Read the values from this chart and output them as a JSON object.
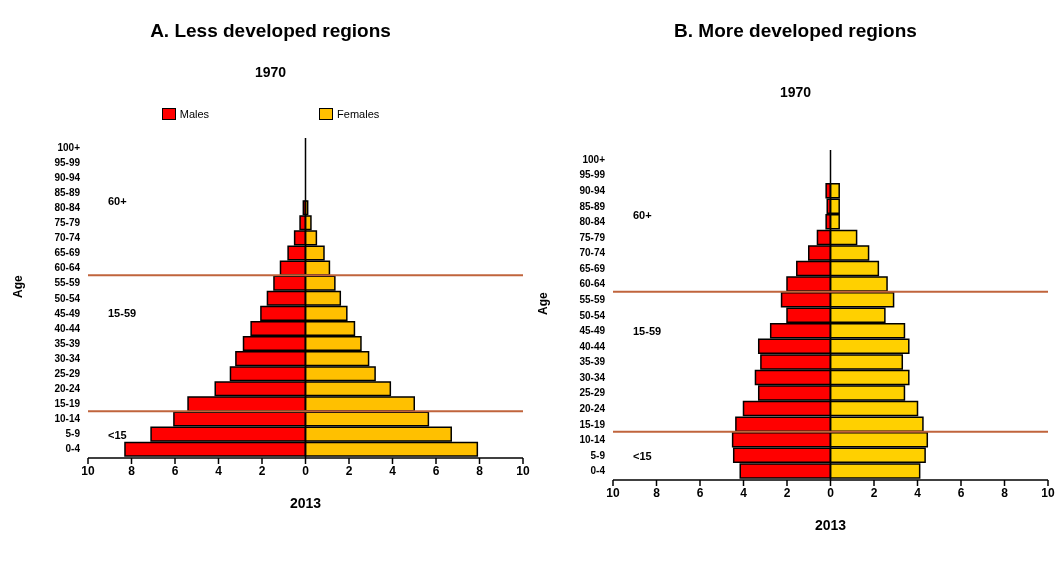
{
  "chart_data": [
    {
      "type": "bar",
      "orientation": "horizontal",
      "stacked": true,
      "title": "A. Less developed regions",
      "subtitle": "1970",
      "xlabel": "2013",
      "ylabel": "Age",
      "categories": [
        "100+",
        "95-99",
        "90-94",
        "85-89",
        "80-84",
        "75-79",
        "70-74",
        "65-69",
        "60-64",
        "55-59",
        "50-54",
        "45-49",
        "40-44",
        "35-39",
        "30-34",
        "25-29",
        "20-24",
        "15-19",
        "10-14",
        "5-9",
        "0-4"
      ],
      "series": [
        {
          "name": "Males",
          "color": "#ff0000",
          "values": [
            0,
            0,
            null,
            null,
            -0.1,
            -0.25,
            -0.5,
            -0.8,
            -1.15,
            -1.45,
            -1.75,
            -2.05,
            -2.5,
            -2.85,
            -3.2,
            -3.45,
            -4.15,
            -5.4,
            -6.05,
            -7.1,
            -8.3
          ]
        },
        {
          "name": "Females",
          "color": "#ffc000",
          "values": [
            0,
            0,
            null,
            null,
            0.1,
            0.25,
            0.5,
            0.85,
            1.1,
            1.35,
            1.6,
            1.9,
            2.25,
            2.55,
            2.9,
            3.2,
            3.9,
            5.0,
            5.65,
            6.7,
            7.9
          ]
        }
      ],
      "xlim": [
        -10,
        10
      ],
      "xticks": [
        {
          "value": -10,
          "label": "10"
        },
        {
          "value": -8,
          "label": "8"
        },
        {
          "value": -6,
          "label": "6"
        },
        {
          "value": -4,
          "label": "4"
        },
        {
          "value": -2,
          "label": "2"
        },
        0,
        2,
        4,
        6,
        8,
        10
      ],
      "ref_lines": [
        {
          "axis": "y",
          "value": "60-64",
          "color": "#c0643c"
        },
        {
          "axis": "y",
          "value": "15-19",
          "color": "#c0643c"
        }
      ],
      "annotations": [
        "60+",
        "15-59",
        "<15"
      ],
      "legend": "top"
    },
    {
      "type": "bar",
      "orientation": "horizontal",
      "stacked": true,
      "title": "B. More developed regions",
      "subtitle": "1970",
      "xlabel": "2013",
      "ylabel": "Age",
      "categories": [
        "100+",
        "95-99",
        "90-94",
        "85-89",
        "80-84",
        "75-79",
        "70-74",
        "65-69",
        "60-64",
        "55-59",
        "50-54",
        "45-49",
        "40-44",
        "35-39",
        "30-34",
        "25-29",
        "20-24",
        "15-19",
        "10-14",
        "5-9",
        "0-4"
      ],
      "series": [
        {
          "color": "#ff0000",
          "values": [
            0,
            0,
            -0.2,
            -0.15,
            -0.2,
            -0.6,
            -1.0,
            -1.55,
            -2.0,
            -2.25,
            -2.0,
            -2.75,
            -3.3,
            -3.2,
            -3.45,
            -3.3,
            -4.0,
            -4.35,
            -4.5,
            -4.45,
            -4.15
          ]
        },
        {
          "color": "#ffd000",
          "values": [
            0,
            0,
            0.4,
            0.4,
            0.4,
            1.2,
            1.75,
            2.2,
            2.6,
            2.9,
            2.5,
            3.4,
            3.6,
            3.3,
            3.6,
            3.4,
            4.0,
            4.25,
            4.45,
            4.35,
            4.1
          ]
        }
      ],
      "xlim": [
        -10,
        10
      ],
      "xticks": [
        {
          "value": -10,
          "label": "10"
        },
        {
          "value": -8,
          "label": "8"
        },
        {
          "value": -6,
          "label": "6"
        },
        {
          "value": -4,
          "label": "4"
        },
        {
          "value": -2,
          "label": "2"
        },
        0,
        2,
        4,
        6,
        8,
        10
      ],
      "ref_lines": [
        {
          "axis": "y",
          "value": "60-64",
          "color": "#c0643c"
        },
        {
          "axis": "y",
          "value": "15-19",
          "color": "#c0643c"
        }
      ],
      "annotations": [
        "60+",
        "15-59",
        "<15"
      ]
    }
  ]
}
